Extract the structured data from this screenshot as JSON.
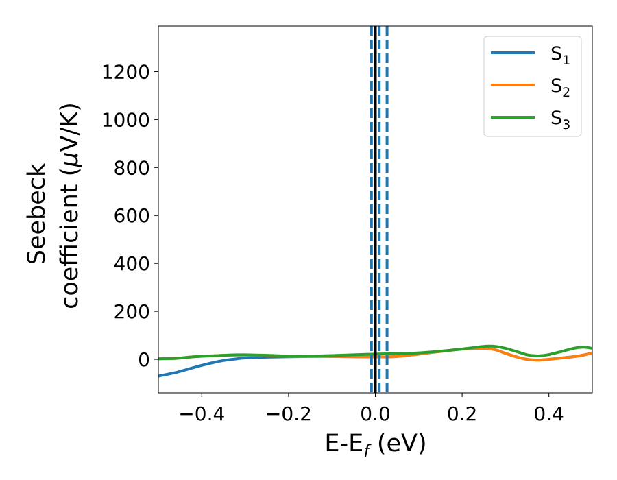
{
  "chart_data": {
    "type": "line",
    "title": "",
    "xlabel": {
      "main": "E-E",
      "sub": "f",
      "tail": " (eV)"
    },
    "ylabel": {
      "line1": "Seebeck",
      "line2_prefix": "coefficient  (",
      "mu": "μ",
      "line2_suffix": "V/K)"
    },
    "xlim": [
      -0.5,
      0.5
    ],
    "ylim": [
      -140,
      1390
    ],
    "x_ticks": [
      -0.4,
      -0.2,
      0.0,
      0.2,
      0.4
    ],
    "x_tick_labels": [
      "−0.4",
      "−0.2",
      "0.0",
      "0.2",
      "0.4"
    ],
    "y_ticks": [
      0,
      200,
      400,
      600,
      800,
      1000,
      1200
    ],
    "y_tick_labels": [
      "0",
      "200",
      "400",
      "600",
      "800",
      "1000",
      "1200"
    ],
    "grid": false,
    "legend_position": "top-right",
    "series": [
      {
        "name": "S",
        "sub": "1",
        "color": "#1f77b4",
        "x": [
          -0.5,
          -0.46,
          -0.43,
          -0.4,
          -0.37,
          -0.35,
          -0.32,
          -0.3,
          -0.25,
          -0.2,
          -0.15,
          -0.1,
          -0.05,
          0.0,
          0.05,
          0.1,
          0.15,
          0.2,
          0.23,
          0.26,
          0.28,
          0.3,
          0.33,
          0.35,
          0.37,
          0.38,
          0.4,
          0.43,
          0.46,
          0.48,
          0.5
        ],
        "y": [
          -70,
          -55,
          -40,
          -25,
          -12,
          -5,
          2,
          6,
          9,
          11,
          12,
          12,
          11,
          10,
          12,
          22,
          33,
          43,
          46,
          45,
          38,
          25,
          8,
          0,
          -3,
          -3,
          0,
          6,
          12,
          18,
          27
        ]
      },
      {
        "name": "S",
        "sub": "2",
        "color": "#ff7f0e",
        "x": [
          -0.5,
          -0.46,
          -0.43,
          -0.4,
          -0.37,
          -0.35,
          -0.32,
          -0.3,
          -0.25,
          -0.2,
          -0.15,
          -0.1,
          -0.05,
          0.0,
          0.05,
          0.1,
          0.15,
          0.2,
          0.23,
          0.26,
          0.28,
          0.3,
          0.33,
          0.35,
          0.37,
          0.38,
          0.4,
          0.43,
          0.46,
          0.48,
          0.5
        ],
        "y": [
          3,
          4,
          9,
          13,
          15,
          17,
          18,
          18,
          16,
          13,
          12,
          12,
          11,
          10,
          12,
          22,
          33,
          43,
          46,
          45,
          38,
          25,
          8,
          0,
          -3,
          -3,
          0,
          6,
          12,
          18,
          27
        ]
      },
      {
        "name": "S",
        "sub": "3",
        "color": "#2ca02c",
        "x": [
          -0.5,
          -0.46,
          -0.43,
          -0.4,
          -0.37,
          -0.35,
          -0.32,
          -0.3,
          -0.25,
          -0.2,
          -0.15,
          -0.1,
          -0.05,
          0.0,
          0.05,
          0.1,
          0.15,
          0.2,
          0.23,
          0.26,
          0.28,
          0.3,
          0.33,
          0.35,
          0.37,
          0.38,
          0.4,
          0.43,
          0.46,
          0.48,
          0.5
        ],
        "y": [
          2,
          4,
          9,
          13,
          15,
          17,
          19,
          19,
          17,
          14,
          14,
          16,
          19,
          22,
          24,
          27,
          34,
          43,
          50,
          55,
          53,
          46,
          30,
          19,
          15,
          15,
          20,
          33,
          47,
          51,
          46
        ]
      }
    ],
    "vertical_lines": [
      {
        "x": 0.0,
        "color": "#000000",
        "style": "solid"
      },
      {
        "x": -0.009,
        "color": "#1f77b4",
        "style": "dashed"
      },
      {
        "x": 0.009,
        "color": "#1f77b4",
        "style": "dashed"
      },
      {
        "x": 0.027,
        "color": "#1f77b4",
        "style": "dashed"
      }
    ]
  }
}
